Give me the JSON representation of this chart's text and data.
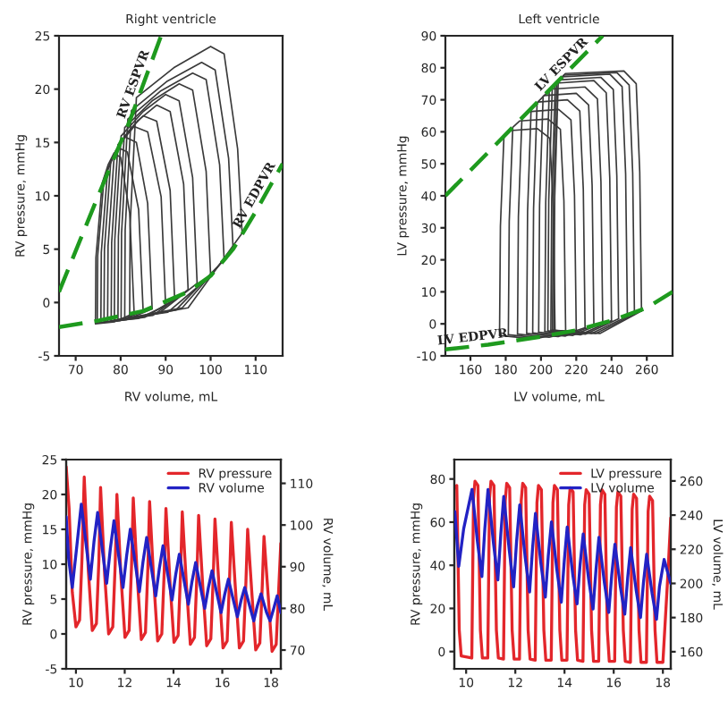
{
  "chart_data": [
    {
      "type": "line",
      "title": "Right ventricle",
      "xlabel": "RV volume, mL",
      "ylabel": "RV pressure, mmHg",
      "xlim": [
        66.3,
        116
      ],
      "ylim": [
        -5,
        25
      ],
      "xticks": [
        70,
        80,
        90,
        100,
        110
      ],
      "yticks": [
        -5,
        0,
        5,
        10,
        15,
        20,
        25
      ],
      "series": [
        {
          "color": "#3a3a3a",
          "x": [
            107,
            106,
            103,
            100,
            91.8,
            83.5,
            82.1,
            82
          ],
          "values": [
            6.5,
            14.4,
            23.3,
            24,
            22,
            19.2,
            7.2,
            -1.5
          ]
        },
        {
          "color": "#3a3a3a",
          "x": [
            82,
            95,
            107
          ],
          "values": [
            -1.5,
            -0.5,
            6.5
          ]
        },
        {
          "color": "#3a3a3a",
          "x": [
            105,
            104,
            101,
            98,
            90.2,
            82.4,
            81,
            80.9
          ],
          "values": [
            5,
            13.5,
            21.8,
            22.5,
            20.7,
            18,
            6.8,
            -1.5
          ]
        },
        {
          "color": "#3a3a3a",
          "x": [
            80.9,
            93.7,
            105
          ],
          "values": [
            -1.5,
            -0.5,
            5
          ]
        },
        {
          "color": "#3a3a3a",
          "x": [
            103,
            102,
            99,
            96,
            88.8,
            81.6,
            80.2,
            80.1
          ],
          "values": [
            4,
            12.9,
            20.9,
            21.5,
            19.8,
            17.2,
            6.5,
            -1.6
          ]
        },
        {
          "color": "#3a3a3a",
          "x": [
            80.1,
            92.3,
            103
          ],
          "values": [
            -1.6,
            -0.7,
            4
          ]
        },
        {
          "color": "#3a3a3a",
          "x": [
            100,
            99,
            96,
            93,
            87,
            80.9,
            79.5,
            79.4
          ],
          "values": [
            2.5,
            12.3,
            19.9,
            20.5,
            18.9,
            16.4,
            6.2,
            -1.6
          ]
        },
        {
          "color": "#3a3a3a",
          "x": [
            79.4,
            90.5,
            100
          ],
          "values": [
            -1.6,
            -0.9,
            2.5
          ]
        },
        {
          "color": "#3a3a3a",
          "x": [
            97,
            96,
            93,
            90,
            85,
            80.1,
            78.7,
            78.6
          ],
          "values": [
            1.8,
            11.7,
            18.9,
            19.5,
            17.9,
            15.6,
            5.9,
            -1.7
          ]
        },
        {
          "color": "#3a3a3a",
          "x": [
            78.6,
            88.5,
            97
          ],
          "values": [
            -1.7,
            -1,
            1.8
          ]
        },
        {
          "color": "#3a3a3a",
          "x": [
            95,
            94,
            91,
            88,
            83.7,
            79.4,
            78,
            77.9
          ],
          "values": [
            1.2,
            11.1,
            17.9,
            18.5,
            17,
            14.8,
            5.6,
            -1.7
          ]
        },
        {
          "color": "#3a3a3a",
          "x": [
            77.9,
            87.2,
            95
          ],
          "values": [
            -1.7,
            -1.2,
            1.2
          ]
        },
        {
          "color": "#3a3a3a",
          "x": [
            92,
            91,
            88,
            85,
            81.8,
            78.6,
            77.2,
            77.1
          ],
          "values": [
            0.3,
            10.5,
            17,
            17.5,
            16.1,
            14,
            5.3,
            -1.8
          ]
        },
        {
          "color": "#3a3a3a",
          "x": [
            77.1,
            85.3,
            92
          ],
          "values": [
            -1.8,
            -1.4,
            0.3
          ]
        },
        {
          "color": "#3a3a3a",
          "x": [
            90,
            89,
            86,
            83,
            80.4,
            77.8,
            76.4,
            76.3
          ],
          "values": [
            -0.3,
            9.9,
            16,
            16.5,
            15.2,
            13.2,
            5,
            -1.8
          ]
        },
        {
          "color": "#3a3a3a",
          "x": [
            76.3,
            83.9,
            90
          ],
          "values": [
            -1.8,
            -1.5,
            -0.3
          ]
        },
        {
          "color": "#3a3a3a",
          "x": [
            87,
            86,
            83.5,
            81,
            79,
            77.1,
            75.7,
            75.6
          ],
          "values": [
            -0.6,
            9.3,
            15,
            15.5,
            14.3,
            12.4,
            4.7,
            -1.9
          ]
        },
        {
          "color": "#3a3a3a",
          "x": [
            75.6,
            81.3,
            87
          ],
          "values": [
            -1.9,
            -1.6,
            -0.6
          ]
        },
        {
          "color": "#3a3a3a",
          "x": [
            85,
            84,
            81.5,
            79.5,
            77.9,
            76.3,
            74.9,
            74.8
          ],
          "values": [
            -0.8,
            8.7,
            14.1,
            14.5,
            13.3,
            11.6,
            4.4,
            -1.9
          ]
        },
        {
          "color": "#3a3a3a",
          "x": [
            74.8,
            79.9,
            85
          ],
          "values": [
            -1.9,
            -1.7,
            -0.8
          ]
        },
        {
          "color": "#3a3a3a",
          "x": [
            83,
            82,
            80,
            78.5,
            77.2,
            75.9,
            74.5,
            74.4
          ],
          "values": [
            -1,
            8.4,
            13.6,
            14,
            12.9,
            11.2,
            4.2,
            -2
          ]
        },
        {
          "color": "#3a3a3a",
          "x": [
            74.4,
            78.7,
            83
          ],
          "values": [
            -2,
            -1.8,
            -1
          ]
        },
        {
          "color": "#1e9a1e",
          "line_style": "dashed",
          "x": [
            66.3,
            75,
            82,
            89
          ],
          "values": [
            1,
            10,
            17,
            25
          ]
        },
        {
          "color": "#1e9a1e",
          "line_style": "dashed",
          "x": [
            66.3,
            75,
            85,
            95,
            100,
            105,
            110,
            116
          ],
          "values": [
            -2.3,
            -1.7,
            -0.8,
            1,
            2.5,
            5,
            8.5,
            13
          ]
        }
      ],
      "annotations": [
        "RV ESPVR",
        "RV EDPVR"
      ]
    },
    {
      "type": "line",
      "title": "Left ventricle",
      "xlabel": "LV volume, mL",
      "ylabel": "LV pressure, mmHg",
      "xlim": [
        145.8,
        274.6
      ],
      "ylim": [
        -10,
        90
      ],
      "xticks": [
        160,
        180,
        200,
        220,
        240,
        260
      ],
      "yticks": [
        -10,
        0,
        10,
        20,
        30,
        40,
        50,
        60,
        70,
        80,
        90
      ],
      "series": [
        {
          "color": "#3a3a3a",
          "x": [
            257,
            256,
            254,
            247,
            213.8,
            209.8,
            207.8,
            207.3
          ],
          "values": [
            4,
            47.4,
            75,
            79,
            78.2,
            75.8,
            39.5,
            -2
          ]
        },
        {
          "color": "#3a3a3a",
          "x": [
            207.3,
            233.4,
            257
          ],
          "values": [
            -2,
            -3,
            4
          ]
        },
        {
          "color": "#3a3a3a",
          "x": [
            253,
            252,
            250,
            243,
            213,
            209,
            207,
            206.5
          ],
          "values": [
            3,
            47.1,
            74.6,
            78.5,
            77.7,
            75.4,
            39.3,
            -2
          ]
        },
        {
          "color": "#3a3a3a",
          "x": [
            206.5,
            231,
            253
          ],
          "values": [
            -2,
            -3,
            3
          ]
        },
        {
          "color": "#3a3a3a",
          "x": [
            249,
            248,
            246,
            239,
            212.1,
            208.1,
            206.1,
            205.6
          ],
          "values": [
            2.3,
            46.8,
            74.1,
            78,
            77.2,
            74.9,
            39,
            -2
          ]
        },
        {
          "color": "#3a3a3a",
          "x": [
            205.6,
            228.6,
            249
          ],
          "values": [
            -2,
            -3,
            2.3
          ]
        },
        {
          "color": "#3a3a3a",
          "x": [
            244,
            243,
            241,
            234,
            210.4,
            206.4,
            204.4,
            203.9
          ],
          "values": [
            1.6,
            46.2,
            73.2,
            77,
            76.2,
            73.9,
            38.5,
            -2.2
          ]
        },
        {
          "color": "#3a3a3a",
          "x": [
            203.9,
            225.2,
            244
          ],
          "values": [
            -2.2,
            -3.2,
            1.6
          ]
        },
        {
          "color": "#3a3a3a",
          "x": [
            240,
            239,
            237,
            230,
            208.7,
            204.7,
            202.7,
            202.2
          ],
          "values": [
            1,
            45.6,
            72.2,
            76,
            75.2,
            73,
            38,
            -2.4
          ]
        },
        {
          "color": "#3a3a3a",
          "x": [
            202.2,
            222.4,
            240
          ],
          "values": [
            -2.4,
            -3.4,
            1
          ]
        },
        {
          "color": "#3a3a3a",
          "x": [
            235,
            234,
            232,
            225,
            205.2,
            201.2,
            199.2,
            198.7
          ],
          "values": [
            0.3,
            44.4,
            70.3,
            74,
            73.3,
            71,
            37,
            -2.6
          ]
        },
        {
          "color": "#3a3a3a",
          "x": [
            198.7,
            218.1,
            235
          ],
          "values": [
            -2.6,
            -3.6,
            0.3
          ]
        },
        {
          "color": "#3a3a3a",
          "x": [
            230,
            229,
            227,
            220,
            201.8,
            197.8,
            195.8,
            195.3
          ],
          "values": [
            -0.5,
            43.2,
            68.4,
            72,
            71.3,
            69.1,
            36,
            -2.8
          ]
        },
        {
          "color": "#3a3a3a",
          "x": [
            195.3,
            213.9,
            230
          ],
          "values": [
            -2.8,
            -3.8,
            -0.5
          ]
        },
        {
          "color": "#3a3a3a",
          "x": [
            225,
            224,
            222,
            215,
            198.4,
            194.4,
            192.4,
            191.9
          ],
          "values": [
            -1.2,
            42,
            66.5,
            70,
            69.3,
            67.2,
            35,
            -3
          ]
        },
        {
          "color": "#3a3a3a",
          "x": [
            191.9,
            209.7,
            225
          ],
          "values": [
            -3,
            -4,
            -1.2
          ]
        },
        {
          "color": "#3a3a3a",
          "x": [
            220,
            219,
            217,
            210,
            193.2,
            189.2,
            187.2,
            186.7
          ],
          "values": [
            -2,
            40.2,
            63.7,
            67,
            66.3,
            64.3,
            33.5,
            -3.2
          ]
        },
        {
          "color": "#3a3a3a",
          "x": [
            186.7,
            204.6,
            220
          ],
          "values": [
            -3.2,
            -4.2,
            -2
          ]
        },
        {
          "color": "#3a3a3a",
          "x": [
            214,
            213,
            211,
            204,
            188,
            184,
            182,
            181.5
          ],
          "values": [
            -2.7,
            38.4,
            60.8,
            64,
            63.4,
            61.4,
            32,
            -3.4
          ]
        },
        {
          "color": "#3a3a3a",
          "x": [
            181.5,
            199,
            214
          ],
          "values": [
            -3.4,
            -4.4,
            -2.7
          ]
        },
        {
          "color": "#3a3a3a",
          "x": [
            208,
            207,
            205,
            198,
            183,
            179,
            177,
            176.5
          ],
          "values": [
            -3.3,
            36.6,
            58,
            61,
            60.4,
            58.6,
            30.5,
            -3.6
          ]
        },
        {
          "color": "#3a3a3a",
          "x": [
            176.5,
            193.5,
            208
          ],
          "values": [
            -3.6,
            -4.6,
            -3.3
          ]
        },
        {
          "color": "#1e9a1e",
          "line_style": "dashed",
          "x": [
            145.8,
            235
          ],
          "values": [
            40,
            90
          ]
        },
        {
          "color": "#1e9a1e",
          "line_style": "dashed",
          "x": [
            145.8,
            170,
            200,
            220,
            240,
            260,
            274.6
          ],
          "values": [
            -8,
            -6.5,
            -4,
            -2,
            1,
            5,
            10
          ]
        }
      ],
      "annotations": [
        "LV ESPVR",
        "LV EDPVR"
      ]
    },
    {
      "type": "line",
      "ylabel": "RV pressure, mmHg",
      "y2label": "RV volume, mL",
      "xlim": [
        9.6,
        18.4
      ],
      "ylim": [
        -5,
        25
      ],
      "y2lim": [
        65.5,
        115.7
      ],
      "xticks": [
        10,
        12,
        14,
        16,
        18
      ],
      "yticks": [
        -5,
        0,
        5,
        10,
        15,
        20,
        25
      ],
      "y2ticks": [
        70,
        80,
        90,
        100,
        110
      ],
      "legend": "top right",
      "series": [
        {
          "name": "RV pressure",
          "color": "#e3262b",
          "x": [
            9.6,
            9.72,
            9.85,
            10.0,
            10.15,
            10.25,
            10.34,
            10.51,
            10.67,
            10.84,
            10.94,
            11.01,
            11.18,
            11.34,
            11.51,
            11.61,
            11.68,
            11.85,
            12.01,
            12.18,
            12.28,
            12.35,
            12.52,
            12.68,
            12.85,
            12.95,
            13.02,
            13.19,
            13.35,
            13.52,
            13.62,
            13.69,
            13.86,
            14.02,
            14.19,
            14.29,
            14.36,
            14.53,
            14.69,
            14.86,
            14.96,
            15.03,
            15.2,
            15.36,
            15.53,
            15.63,
            15.7,
            15.87,
            16.03,
            16.2,
            16.3,
            16.37,
            16.54,
            16.7,
            16.87,
            16.97,
            17.04,
            17.21,
            17.37,
            17.54,
            17.64,
            17.71,
            17.88,
            18.04,
            18.21,
            18.4
          ],
          "values": [
            24,
            18,
            6,
            1,
            2,
            11,
            22.5,
            9,
            0.5,
            1.5,
            10.5,
            21,
            8.4,
            0,
            1,
            10,
            20,
            8,
            -0.5,
            0.5,
            9.8,
            19.5,
            7.8,
            -0.8,
            0.2,
            9.5,
            19,
            7.6,
            -1,
            0,
            9,
            18,
            7.2,
            -1.2,
            -0.2,
            8.8,
            17.5,
            7,
            -1.5,
            -0.5,
            8.5,
            17,
            6.8,
            -1.7,
            -0.7,
            8.2,
            16.5,
            6.6,
            -2,
            -1,
            8,
            16,
            6.4,
            -2,
            -1,
            7.5,
            15,
            6,
            -2.3,
            -1.3,
            7,
            14,
            5.6,
            -2.5,
            -1.5,
            13
          ]
        },
        {
          "name": "RV volume",
          "color": "#2222c4",
          "axis": "y2",
          "x": [
            9.6,
            9.7,
            9.85,
            10.0,
            10.22,
            10.44,
            10.59,
            10.74,
            10.89,
            11.11,
            11.26,
            11.41,
            11.56,
            11.78,
            11.93,
            12.08,
            12.23,
            12.45,
            12.6,
            12.75,
            12.9,
            13.12,
            13.27,
            13.42,
            13.57,
            13.79,
            13.94,
            14.09,
            14.24,
            14.46,
            14.61,
            14.76,
            14.91,
            15.13,
            15.28,
            15.43,
            15.58,
            15.8,
            15.95,
            16.1,
            16.25,
            16.47,
            16.62,
            16.77,
            16.92,
            17.14,
            17.29,
            17.44,
            17.59,
            17.81,
            17.96,
            18.11,
            18.25,
            18.4
          ],
          "values": [
            102,
            92,
            85,
            93,
            105,
            94.2,
            87,
            96,
            103,
            92.8,
            86,
            94.3,
            101,
            91.4,
            85,
            92.7,
            99,
            90,
            84,
            91.2,
            97,
            88.6,
            83,
            89.6,
            95,
            87.2,
            82,
            88.1,
            93,
            85.8,
            81,
            86.5,
            91,
            84.4,
            80,
            85,
            89,
            83,
            79,
            83.4,
            87,
            81.6,
            78,
            81.9,
            85,
            80.2,
            77,
            80.7,
            83.5,
            79.1,
            77,
            80,
            83,
            79
          ]
        }
      ]
    },
    {
      "type": "line",
      "ylabel": "RV pressure, mmHg",
      "y2label": "LV volume, mL",
      "xlim": [
        9.52,
        18.32
      ],
      "ylim": [
        -8,
        89
      ],
      "y2lim": [
        150,
        272.5
      ],
      "xticks": [
        10,
        12,
        14,
        16,
        18
      ],
      "yticks": [
        0,
        20,
        40,
        60,
        80
      ],
      "y2ticks": [
        160,
        180,
        200,
        220,
        240,
        260
      ],
      "legend": "top right",
      "series": [
        {
          "name": "LV pressure",
          "color": "#e3262b",
          "x": [
            9.54,
            9.62,
            9.72,
            9.8,
            10.23,
            10.3,
            10.36,
            10.48,
            10.58,
            10.66,
            10.88,
            10.95,
            11.01,
            11.13,
            11.23,
            11.31,
            11.52,
            11.59,
            11.65,
            11.77,
            11.87,
            11.95,
            12.17,
            12.24,
            12.3,
            12.42,
            12.52,
            12.6,
            12.81,
            12.88,
            12.94,
            13.06,
            13.16,
            13.24,
            13.46,
            13.53,
            13.59,
            13.71,
            13.81,
            13.89,
            14.1,
            14.17,
            14.23,
            14.35,
            14.45,
            14.53,
            14.75,
            14.82,
            14.88,
            15.0,
            15.1,
            15.18,
            15.39,
            15.46,
            15.52,
            15.64,
            15.74,
            15.82,
            16.04,
            16.11,
            16.17,
            16.29,
            16.39,
            16.47,
            16.68,
            16.75,
            16.81,
            16.93,
            17.03,
            17.11,
            17.33,
            17.4,
            17.46,
            17.58,
            17.68,
            17.76,
            18.0,
            18.2,
            18.32
          ],
          "values": [
            76,
            77,
            10,
            -2,
            -3,
            71,
            79,
            77,
            10,
            -3,
            -3,
            71,
            79,
            77,
            10,
            -3,
            -3.5,
            70,
            78,
            76,
            10,
            -3.5,
            -3.5,
            70,
            78,
            76,
            10,
            -3.5,
            -4,
            69,
            77,
            75,
            10,
            -4,
            -4,
            69,
            77,
            75,
            10,
            -4,
            -4,
            68,
            76,
            74,
            10,
            -4,
            -4.5,
            68,
            75,
            73,
            10,
            -4.5,
            -4.5,
            68,
            75,
            73,
            10,
            -4.5,
            -4.5,
            67,
            74,
            72,
            10,
            -4.5,
            -5,
            66,
            73,
            71,
            10,
            -5,
            -5,
            65,
            72,
            70,
            10,
            -5,
            -5,
            35,
            62
          ]
        },
        {
          "name": "LV volume",
          "color": "#2222c4",
          "axis": "y2",
          "x": [
            9.54,
            9.7,
            9.9,
            10.24,
            10.46,
            10.64,
            10.76,
            10.89,
            11.11,
            11.29,
            11.41,
            11.53,
            11.75,
            11.93,
            12.05,
            12.18,
            12.4,
            12.58,
            12.7,
            12.82,
            13.04,
            13.22,
            13.34,
            13.47,
            13.69,
            13.87,
            13.99,
            14.11,
            14.33,
            14.51,
            14.63,
            14.76,
            14.98,
            15.16,
            15.28,
            15.4,
            15.62,
            15.8,
            15.92,
            16.05,
            16.27,
            16.45,
            16.57,
            16.69,
            16.91,
            17.09,
            17.21,
            17.34,
            17.56,
            17.74,
            17.86,
            18.05,
            18.32
          ],
          "values": [
            242,
            210,
            232,
            255,
            224.4,
            204,
            232,
            255,
            223.8,
            202,
            229,
            251,
            219.8,
            198,
            224.4,
            246,
            215.4,
            195,
            220.3,
            241,
            211.6,
            192,
            216.2,
            236,
            207.8,
            189,
            213.2,
            233,
            205.8,
            188,
            210.5,
            229,
            202.6,
            185,
            208.1,
            227,
            200.6,
            183,
            205,
            223,
            198.2,
            182,
            203.5,
            221,
            196.4,
            180,
            200.4,
            217,
            194.2,
            179,
            198,
            214,
            200
          ]
        }
      ]
    }
  ]
}
